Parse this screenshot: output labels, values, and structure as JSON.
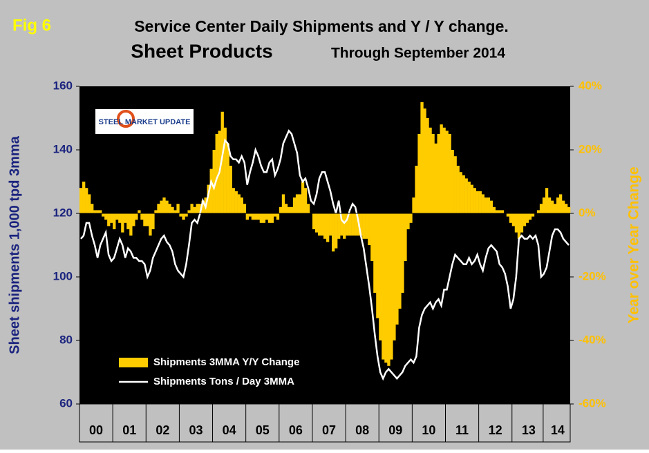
{
  "fig_label": "Fig 6",
  "logo": "STEEL MARKET UPDATE",
  "chart_data": {
    "type": "bar",
    "title": "Service Center Daily Shipments and Y / Y change.",
    "subtitle": "Sheet Products",
    "subtitle2": "Through September 2014",
    "y_label": "Sheet shipments 1,000 tpd 3mma",
    "y2_label": "Year over Year Change",
    "x": [
      0,
      1,
      2,
      3,
      4,
      5,
      6,
      7,
      8,
      9,
      10,
      11,
      12,
      13,
      14,
      15,
      16,
      17,
      18,
      19,
      20,
      21,
      22,
      23,
      24,
      25,
      26,
      27,
      28,
      29,
      30,
      31,
      32,
      33,
      34,
      35,
      36,
      37,
      38,
      39,
      40,
      41,
      42,
      43,
      44,
      45,
      46,
      47,
      48,
      49,
      50,
      51,
      52,
      53,
      54,
      55,
      56,
      57,
      58,
      59,
      60,
      61,
      62,
      63,
      64,
      65,
      66,
      67,
      68,
      69,
      70,
      71,
      72,
      73,
      74,
      75,
      76,
      77,
      78,
      79,
      80,
      81,
      82,
      83,
      84,
      85,
      86,
      87,
      88,
      89,
      90,
      91,
      92,
      93,
      94,
      95,
      96,
      97,
      98,
      99,
      100,
      101,
      102,
      103,
      104,
      105,
      106,
      107,
      108,
      109,
      110,
      111,
      112,
      113,
      114,
      115,
      116,
      117,
      118,
      119,
      120,
      121,
      122,
      123,
      124,
      125,
      126,
      127,
      128,
      129,
      130,
      131,
      132,
      133,
      134,
      135,
      136,
      137,
      138,
      139,
      140,
      141,
      142,
      143,
      144,
      145,
      146,
      147,
      148,
      149,
      150,
      151,
      152,
      153,
      154,
      155,
      156,
      157,
      158,
      159,
      160,
      161,
      162,
      163,
      164,
      165,
      166,
      167,
      168,
      169,
      170,
      171,
      172,
      173,
      174,
      175,
      176
    ],
    "xlim": [
      -0.5,
      176.5
    ],
    "xticks": [
      {
        "value": 5.5,
        "label": "00"
      },
      {
        "value": 17.5,
        "label": "01"
      },
      {
        "value": 29.5,
        "label": "02"
      },
      {
        "value": 41.5,
        "label": "03"
      },
      {
        "value": 53.5,
        "label": "04"
      },
      {
        "value": 65.5,
        "label": "05"
      },
      {
        "value": 77.5,
        "label": "06"
      },
      {
        "value": 89.5,
        "label": "07"
      },
      {
        "value": 101.5,
        "label": "08"
      },
      {
        "value": 113.5,
        "label": "09"
      },
      {
        "value": 125.5,
        "label": "10"
      },
      {
        "value": 137.5,
        "label": "11"
      },
      {
        "value": 149.5,
        "label": "12"
      },
      {
        "value": 161.5,
        "label": "13"
      },
      {
        "value": 172,
        "label": "14"
      }
    ],
    "ylim": [
      60,
      160
    ],
    "yticks": [
      60,
      80,
      100,
      120,
      140,
      160
    ],
    "y2lim": [
      -60,
      40
    ],
    "y2ticks": [
      {
        "value": -60,
        "label": "-60%"
      },
      {
        "value": -40,
        "label": "-40%"
      },
      {
        "value": -20,
        "label": "-20%"
      },
      {
        "value": 0,
        "label": "0%"
      },
      {
        "value": 20,
        "label": "20%"
      },
      {
        "value": 40,
        "label": "40%"
      }
    ],
    "legend": "lower left",
    "series": [
      {
        "name": "Shipments 3MMA Y/Y Change",
        "type": "bar",
        "axis": "y2",
        "color": "#ffcc00",
        "values": [
          8,
          10,
          8,
          6,
          3,
          1,
          1,
          1,
          -1,
          -2,
          -4,
          -3,
          -5,
          -2,
          -3,
          -6,
          -3,
          -5,
          -7,
          -4,
          -2,
          1,
          -2,
          -4,
          -4,
          -7,
          -5,
          1,
          3,
          4,
          5,
          4,
          3,
          2,
          1,
          3,
          -1,
          -2,
          -1,
          1,
          3,
          2,
          3,
          3,
          4,
          5,
          9,
          14,
          20,
          25,
          26,
          32,
          27,
          22,
          15,
          8,
          7,
          6,
          5,
          3,
          -2,
          -1,
          -2,
          -2,
          -2,
          -3,
          -3,
          -2,
          -3,
          -3,
          -1,
          -2,
          2,
          6,
          3,
          2,
          2,
          5,
          6,
          6,
          10,
          8,
          3,
          0,
          -5,
          -6,
          -7,
          -7,
          -8,
          -9,
          -7,
          -12,
          -11,
          -8,
          -7,
          -8,
          -7,
          -7,
          -7,
          -7,
          -7,
          -7,
          -8,
          -8,
          -10,
          -15,
          -25,
          -33,
          -40,
          -46,
          -47,
          -48,
          -46,
          -40,
          -35,
          -30,
          -25,
          -15,
          -5,
          -3,
          5,
          15,
          25,
          35,
          33,
          30,
          27,
          25,
          22,
          25,
          28,
          27,
          26,
          25,
          20,
          18,
          15,
          13,
          12,
          11,
          10,
          9,
          8,
          7,
          7,
          6,
          5,
          5,
          4,
          2,
          1,
          1,
          1,
          0,
          -1,
          -3,
          -4,
          -6,
          -8,
          -6,
          -4,
          -3,
          -2,
          -1,
          0,
          1,
          3,
          5,
          8,
          5,
          4,
          3,
          5,
          6,
          4,
          3,
          2
        ]
      },
      {
        "name": "Shipments Tons / Day 3MMA",
        "type": "line",
        "axis": "y",
        "color": "#ffffff",
        "values": [
          112,
          113,
          117,
          117,
          113,
          110,
          106,
          110,
          112,
          114,
          107,
          105,
          106,
          109,
          112,
          110,
          106,
          109,
          108,
          106,
          106,
          105,
          105,
          104,
          100,
          102,
          106,
          108,
          110,
          112,
          113,
          111,
          110,
          108,
          104,
          102,
          101,
          100,
          104,
          110,
          117,
          118,
          117,
          120,
          124,
          122,
          126,
          130,
          128,
          131,
          133,
          138,
          143,
          142,
          138,
          137,
          137,
          136,
          138,
          136,
          129,
          133,
          136,
          140,
          138,
          135,
          133,
          133,
          136,
          137,
          132,
          134,
          137,
          142,
          144,
          146,
          145,
          142,
          139,
          132,
          130,
          131,
          128,
          124,
          123,
          126,
          131,
          133,
          133,
          130,
          127,
          123,
          120,
          124,
          118,
          117,
          118,
          121,
          123,
          122,
          118,
          113,
          109,
          103,
          97,
          90,
          82,
          75,
          70,
          68,
          70,
          71,
          70,
          69,
          68,
          69,
          70,
          72,
          73,
          74,
          73,
          75,
          84,
          88,
          90,
          91,
          92,
          90,
          92,
          93,
          91,
          96,
          96,
          100,
          104,
          107,
          106,
          105,
          104,
          104,
          106,
          104,
          105,
          107,
          104,
          102,
          106,
          109,
          110,
          109,
          108,
          104,
          103,
          101,
          97,
          90,
          93,
          100,
          112,
          113,
          112,
          112,
          113,
          112,
          113,
          110,
          100,
          101,
          103,
          108,
          113,
          115,
          115,
          114,
          112,
          111,
          110
        ]
      }
    ]
  }
}
